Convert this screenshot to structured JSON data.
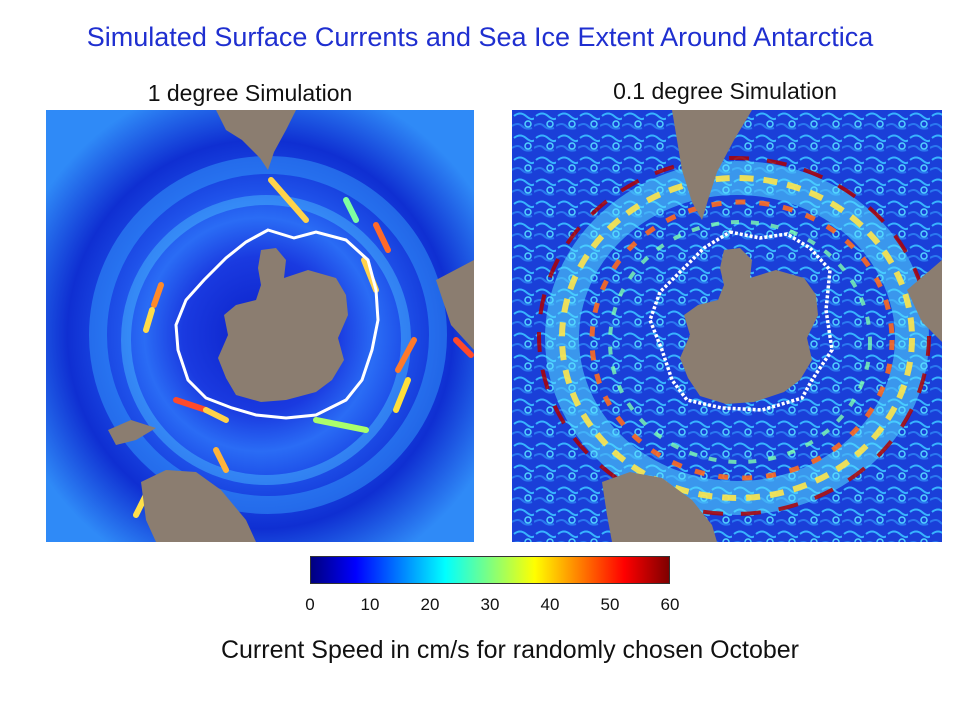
{
  "title": "Simulated Surface Currents and Sea Ice Extent Around Antarctica",
  "panels": [
    {
      "label": "1 degree Simulation"
    },
    {
      "label": "0.1 degree Simulation"
    }
  ],
  "colorbar": {
    "ticks": [
      "0",
      "10",
      "20",
      "30",
      "40",
      "50",
      "60"
    ],
    "colors": [
      "#00007f",
      "#0000ff",
      "#007fff",
      "#00ffff",
      "#7fff7f",
      "#ffff00",
      "#ff7f00",
      "#ff0000",
      "#7f0000"
    ]
  },
  "caption": "Current Speed in cm/s for randomly chosen October",
  "colors": {
    "title": "#1f2fd0",
    "land": "#8b7d70",
    "ocean_low": "#0a1fc8",
    "ice_edge": "#ffffff"
  }
}
